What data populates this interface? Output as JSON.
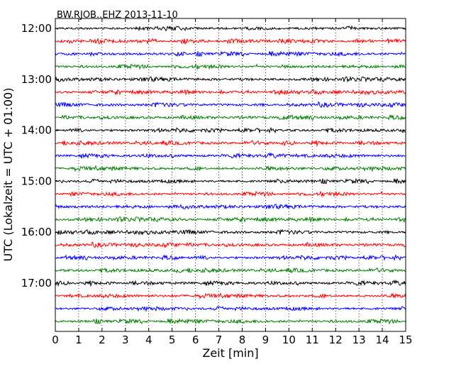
{
  "chart_data": {
    "type": "line",
    "title": "BW.RJOB..EHZ 2013-11-10",
    "xlabel": "Zeit  [min]",
    "ylabel": "UTC (Lokalzeit = UTC + 01:00)",
    "xlim": [
      0,
      15
    ],
    "x_ticks": [
      "0",
      "1",
      "2",
      "3",
      "4",
      "5",
      "6",
      "7",
      "8",
      "9",
      "10",
      "11",
      "12",
      "13",
      "14",
      "15"
    ],
    "y_ticks": [
      "12:00",
      "13:00",
      "14:00",
      "15:00",
      "16:00",
      "17:00"
    ],
    "trace_interval_min": 15,
    "trace_start": "12:00",
    "trace_count": 24,
    "colors": [
      "#000000",
      "#ff0000",
      "#0000ff",
      "#008000"
    ],
    "grid": "vertical dotted",
    "legend": "none"
  }
}
